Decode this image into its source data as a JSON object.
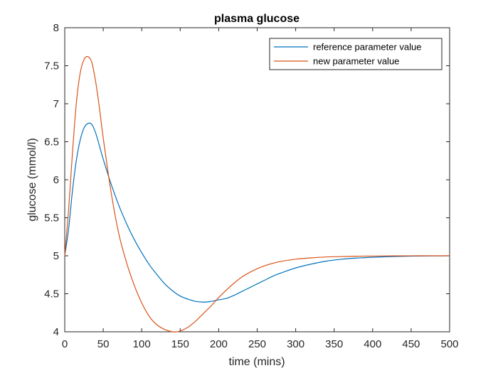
{
  "chart_data": {
    "type": "line",
    "title": "plasma glucose",
    "xlabel": "time (mins)",
    "ylabel": "glucose (mmol/l)",
    "xlim": [
      0,
      500
    ],
    "ylim": [
      4,
      8
    ],
    "xticks": [
      0,
      50,
      100,
      150,
      200,
      250,
      300,
      350,
      400,
      450,
      500
    ],
    "yticks": [
      4,
      4.5,
      5,
      5.5,
      6,
      6.5,
      7,
      7.5,
      8
    ],
    "grid": false,
    "legend_position": "top-right",
    "series": [
      {
        "name": "reference parameter value",
        "color": "#0072BD",
        "x": [
          0,
          5,
          10,
          15,
          20,
          25,
          30,
          35,
          40,
          45,
          50,
          60,
          70,
          80,
          90,
          100,
          110,
          120,
          130,
          140,
          150,
          160,
          170,
          180,
          190,
          200,
          210,
          220,
          230,
          240,
          250,
          260,
          270,
          280,
          300,
          320,
          340,
          360,
          380,
          400,
          420,
          440,
          460,
          480,
          500
        ],
        "y": [
          5.0,
          5.35,
          5.85,
          6.25,
          6.52,
          6.68,
          6.74,
          6.73,
          6.62,
          6.45,
          6.27,
          5.95,
          5.67,
          5.43,
          5.22,
          5.04,
          4.88,
          4.75,
          4.63,
          4.54,
          4.47,
          4.43,
          4.4,
          4.39,
          4.4,
          4.42,
          4.44,
          4.48,
          4.53,
          4.58,
          4.63,
          4.68,
          4.73,
          4.77,
          4.84,
          4.89,
          4.93,
          4.955,
          4.97,
          4.98,
          4.988,
          4.993,
          4.996,
          4.998,
          5.0
        ]
      },
      {
        "name": "new parameter value",
        "color": "#D95319",
        "x": [
          0,
          5,
          10,
          15,
          20,
          25,
          30,
          35,
          40,
          45,
          50,
          60,
          70,
          80,
          90,
          100,
          110,
          120,
          130,
          140,
          145,
          150,
          160,
          170,
          180,
          190,
          200,
          210,
          220,
          230,
          240,
          250,
          260,
          270,
          280,
          300,
          320,
          340,
          360,
          380,
          400,
          420,
          440,
          460,
          480,
          500
        ],
        "y": [
          5.0,
          5.6,
          6.35,
          7.0,
          7.4,
          7.58,
          7.62,
          7.55,
          7.3,
          6.95,
          6.55,
          5.85,
          5.3,
          4.92,
          4.62,
          4.38,
          4.2,
          4.09,
          4.03,
          4.0,
          4.0,
          4.01,
          4.06,
          4.14,
          4.24,
          4.34,
          4.45,
          4.55,
          4.64,
          4.72,
          4.78,
          4.83,
          4.87,
          4.9,
          4.925,
          4.955,
          4.972,
          4.984,
          4.99,
          4.994,
          4.996,
          4.998,
          4.999,
          5.0,
          5.0,
          5.0
        ]
      }
    ]
  }
}
